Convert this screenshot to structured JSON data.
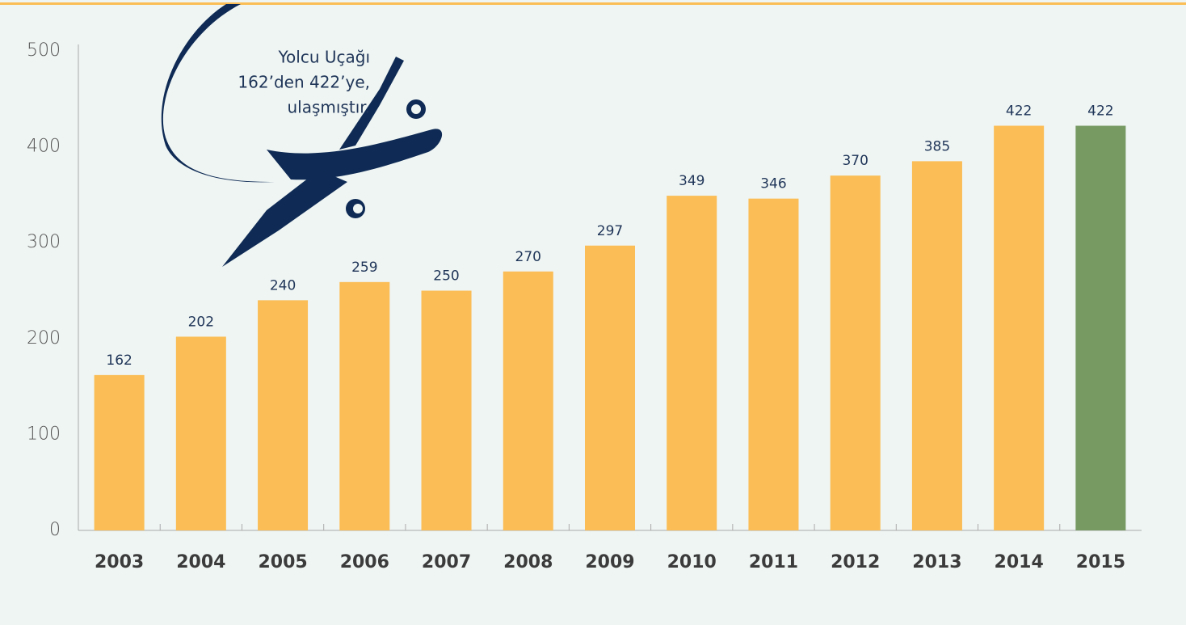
{
  "chart_data": {
    "type": "bar",
    "annotation": [
      "Yolcu Uçağı",
      "162’den 422’ye,",
      "ulaşmıştır."
    ],
    "categories": [
      "2003",
      "2004",
      "2005",
      "2006",
      "2007",
      "2008",
      "2009",
      "2010",
      "2011",
      "2012",
      "2013",
      "2014",
      "2015"
    ],
    "values": [
      162,
      202,
      240,
      259,
      250,
      270,
      297,
      349,
      346,
      370,
      385,
      422,
      422
    ],
    "colors": [
      "#fbbd55",
      "#fbbd55",
      "#fbbd55",
      "#fbbd55",
      "#fbbd55",
      "#fbbd55",
      "#fbbd55",
      "#fbbd55",
      "#fbbd55",
      "#fbbd55",
      "#fbbd55",
      "#fbbd55",
      "#779a63"
    ],
    "ylim": [
      0,
      500
    ],
    "yticks": [
      0,
      100,
      200,
      300,
      400,
      500
    ],
    "grid": false
  }
}
